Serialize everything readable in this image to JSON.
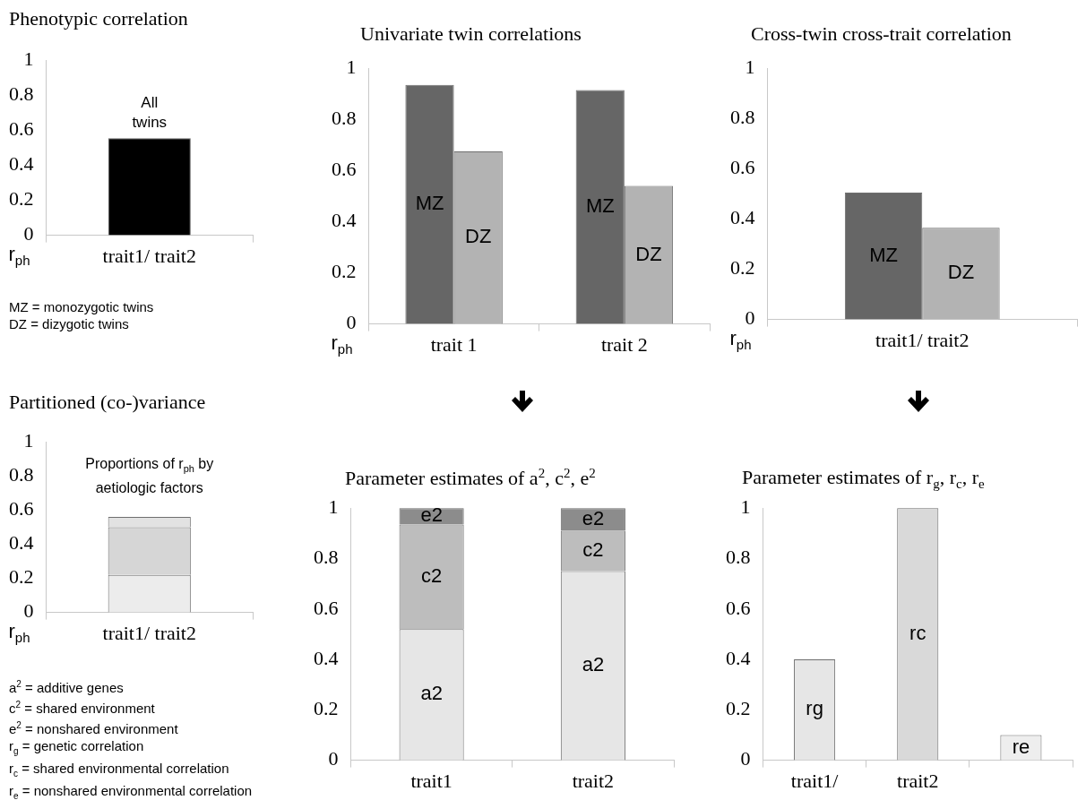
{
  "chart_data": [
    {
      "type": "bar",
      "title": "Phenotypic correlation",
      "ylabel": "r$_{ph}$",
      "categories": [
        "trait1/ trait2"
      ],
      "series": [
        {
          "name": "All twins",
          "color": "#000000",
          "values": [
            0.555
          ]
        }
      ],
      "ylim": [
        0,
        1
      ],
      "yticks": [
        0,
        0.2,
        0.4,
        0.6,
        0.8,
        1
      ],
      "annotations": [
        "MZ = monozygotic twins",
        "DZ = dizygotic twins"
      ]
    },
    {
      "type": "bar",
      "title": "Univariate twin correlations",
      "ylabel": "r$_{ph}$",
      "categories": [
        "trait 1",
        "trait 2"
      ],
      "series": [
        {
          "name": "MZ",
          "color": "#666666",
          "values": [
            0.935,
            0.915
          ]
        },
        {
          "name": "DZ",
          "color": "#b3b3b3",
          "values": [
            0.675,
            0.54
          ]
        }
      ],
      "ylim": [
        0,
        1
      ],
      "yticks": [
        0,
        0.2,
        0.4,
        0.6,
        0.8,
        1
      ]
    },
    {
      "type": "bar",
      "title": "Cross-twin cross-trait correlation",
      "ylabel": "r$_{ph}$",
      "categories": [
        "trait1/ trait2"
      ],
      "series": [
        {
          "name": "MZ",
          "color": "#666666",
          "values": [
            0.505
          ]
        },
        {
          "name": "DZ",
          "color": "#b3b3b3",
          "values": [
            0.365
          ]
        }
      ],
      "ylim": [
        0,
        1
      ],
      "yticks": [
        0,
        0.2,
        0.4,
        0.6,
        0.8,
        1
      ]
    },
    {
      "type": "bar",
      "title": "Partitioned (co-)variance",
      "ylabel": "r$_{ph}$",
      "categories": [
        "trait1/ trait2"
      ],
      "stacked": true,
      "series": [
        {
          "color": "#ececec",
          "values": [
            0.22
          ]
        },
        {
          "color": "#d6d6d6",
          "values": [
            0.28
          ]
        },
        {
          "color": "#e2e2e2",
          "values": [
            0.06
          ]
        }
      ],
      "ylim": [
        0,
        1
      ],
      "yticks": [
        0,
        0.2,
        0.4,
        0.6,
        0.8,
        1
      ],
      "annotations": [
        "Proportions of r$_{ph}$ by aetiologic factors",
        "a$^{2}$ = additive genes",
        "c$^{2}$ = shared environment",
        "e$^{2}$ = nonshared environment",
        "r$_{g}$ = genetic correlation",
        "r$_{c}$ = shared environmental correlation",
        "r$_{e}$ = nonshared environmental correlation"
      ]
    },
    {
      "type": "bar",
      "title": "Parameter estimates of a$^{2}$, c$^{2}$, e$^{2}$",
      "categories": [
        "trait1",
        "trait2"
      ],
      "stacked": true,
      "series": [
        {
          "name": "a2",
          "color": "#e6e6e6",
          "values": [
            0.52,
            0.75
          ]
        },
        {
          "name": "c2",
          "color": "#bdbdbd",
          "values": [
            0.415,
            0.16
          ]
        },
        {
          "name": "e2",
          "color": "#8c8c8c",
          "values": [
            0.065,
            0.09
          ]
        }
      ],
      "ylim": [
        0,
        1
      ],
      "yticks": [
        0,
        0.2,
        0.4,
        0.6,
        0.8,
        1
      ]
    },
    {
      "type": "bar",
      "title": "Parameter estimates of r$_{g}$, r$_{c}$, r$_{e}$",
      "categories": [
        "trait1/",
        "trait2",
        null
      ],
      "series": [
        {
          "name": "rg",
          "color": "#e6e6e6",
          "values": [
            0.4,
            null,
            null
          ]
        },
        {
          "name": "rc",
          "color": "#d9d9d9",
          "values": [
            null,
            1,
            null
          ]
        },
        {
          "name": "re",
          "color": "#eeeeee",
          "values": [
            null,
            null,
            0.1
          ]
        }
      ],
      "ylim": [
        0,
        1
      ],
      "yticks": [
        0,
        0.2,
        0.4,
        0.6,
        0.8,
        1
      ]
    }
  ]
}
